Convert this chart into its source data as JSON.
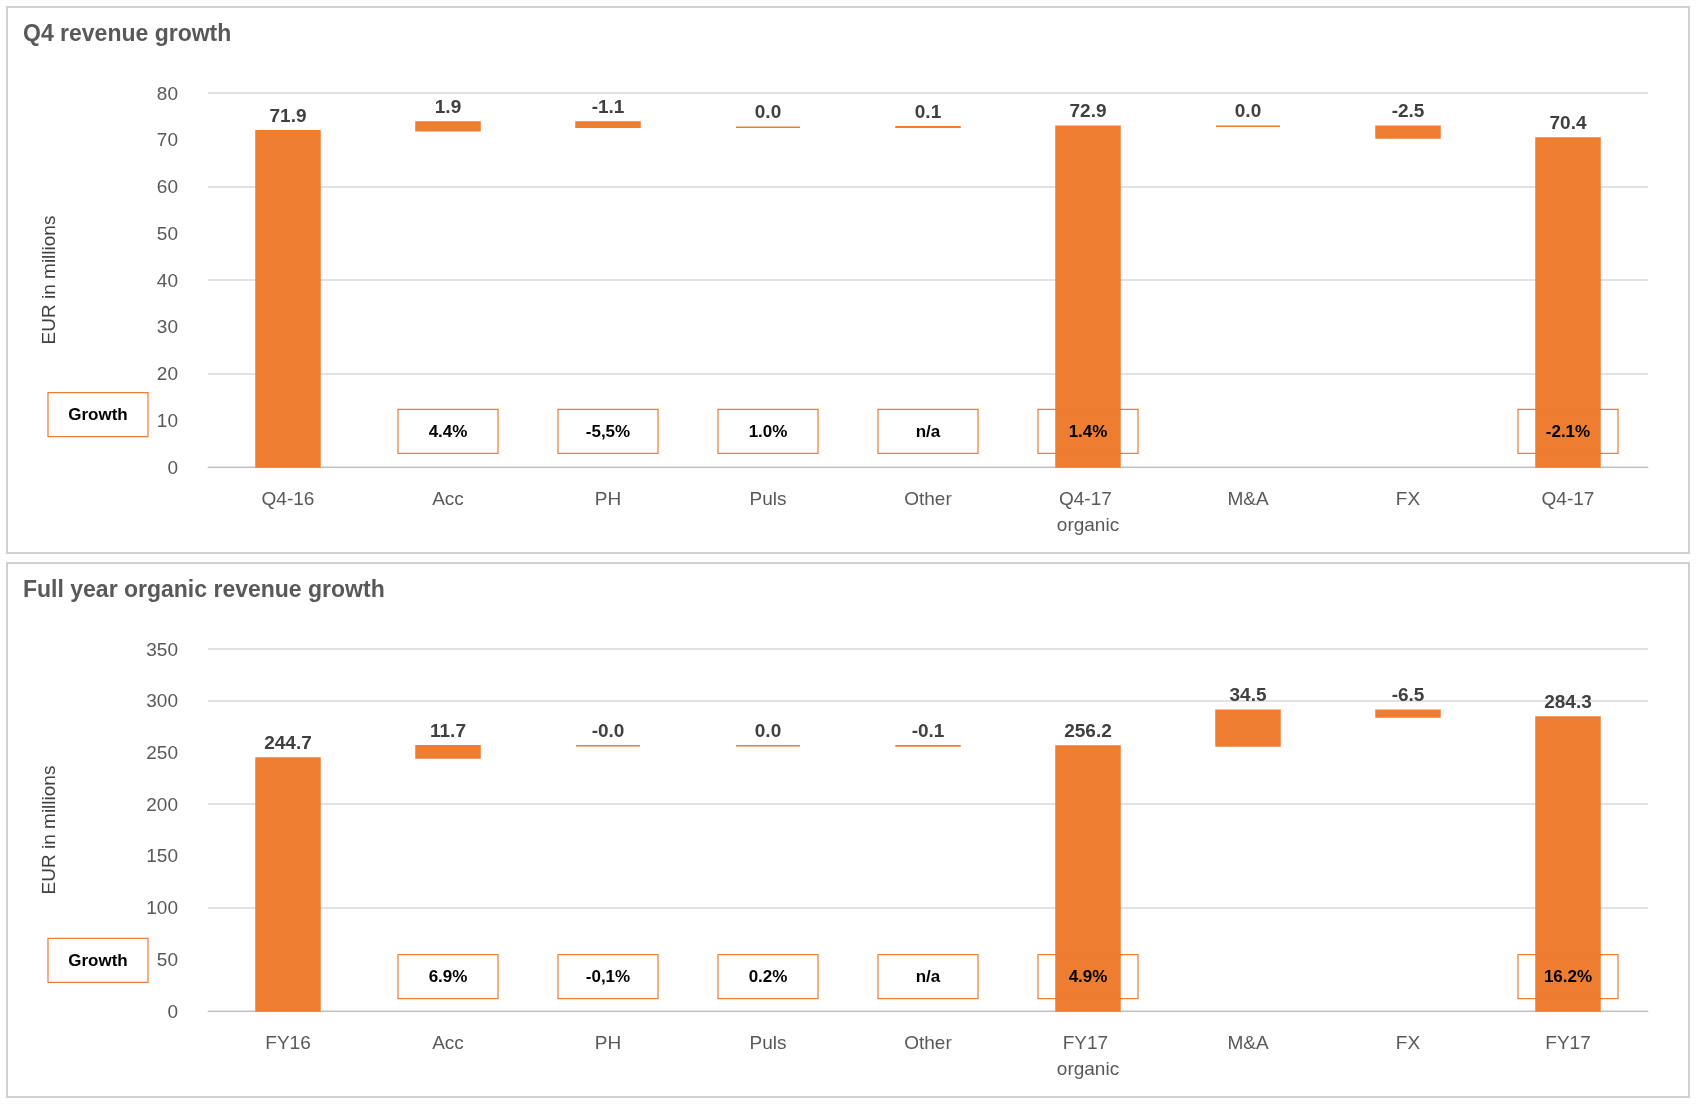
{
  "chart_data": [
    {
      "type": "bar",
      "title": "Q4 revenue growth",
      "ylabel": "EUR in millions",
      "categories": [
        "Q4-16",
        "Acc",
        "PH",
        "Puls",
        "Other",
        "Q4-17 organic",
        "M&A",
        "FX",
        "Q4-17"
      ],
      "base": [
        0,
        71.9,
        73.8,
        72.7,
        72.7,
        0,
        72.9,
        72.9,
        0
      ],
      "values": [
        71.9,
        1.9,
        -1.1,
        0.0,
        0.1,
        72.9,
        0.0,
        -2.5,
        70.4
      ],
      "value_labels": [
        "71.9",
        "1.9",
        "-1.1",
        "0.0",
        "0.1",
        "72.9",
        "0.0",
        "-2.5",
        "70.4"
      ],
      "color": "#ed7d31",
      "ylim": [
        0,
        80
      ],
      "yticks": [
        0,
        10,
        20,
        30,
        40,
        50,
        60,
        70,
        80
      ],
      "grid": "y",
      "annotations": [
        "Growth",
        "4.4%",
        "-5,5%",
        "1.0%",
        "n/a",
        "1.4%",
        "-2.1%"
      ]
    },
    {
      "type": "bar",
      "title": "Full year organic revenue growth",
      "ylabel": "EUR in millions",
      "categories": [
        "FY16",
        "Acc",
        "PH",
        "Puls",
        "Other",
        "FY17 organic",
        "M&A",
        "FX",
        "FY17"
      ],
      "base": [
        0,
        244.7,
        256.4,
        256.4,
        256.4,
        0,
        256.2,
        290.7,
        0
      ],
      "values": [
        244.7,
        11.7,
        0.0,
        0.0,
        -0.1,
        256.2,
        34.5,
        -6.5,
        284.3
      ],
      "value_labels": [
        "244.7",
        "11.7",
        "-0.0",
        "0.0",
        "-0.1",
        "256.2",
        "34.5",
        "-6.5",
        "284.3"
      ],
      "color": "#ed7d31",
      "ylim": [
        0,
        350
      ],
      "yticks": [
        0,
        50,
        100,
        150,
        200,
        250,
        300,
        350
      ],
      "grid": "y",
      "annotations": [
        "Growth",
        "6.9%",
        "-0,1%",
        "0.2%",
        "n/a",
        "4.9%",
        "16.2%"
      ]
    }
  ]
}
